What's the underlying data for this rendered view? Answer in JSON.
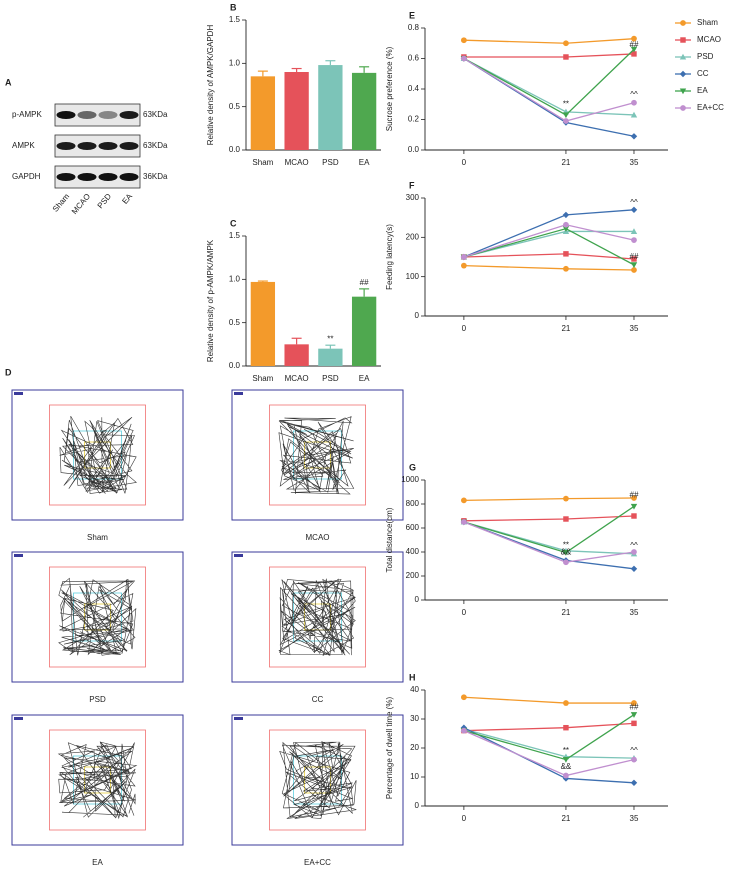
{
  "blot": {
    "panel": "A",
    "rows": [
      "p-AMPK",
      "AMPK",
      "GAPDH"
    ],
    "sizes": [
      "63KDa",
      "63KDa",
      "36KDa"
    ],
    "lanes": [
      "Sham",
      "MCAO",
      "PSD",
      "EA"
    ]
  },
  "open_field": {
    "panel": "D",
    "groups": [
      "Sham",
      "MCAO",
      "PSD",
      "CC",
      "EA",
      "EA+CC"
    ]
  },
  "chart_data": [
    {
      "type": "bar",
      "panel": "B",
      "y_label": "Relative density of AMPK/GAPDH",
      "categories": [
        "Sham",
        "MCAO",
        "PSD",
        "EA"
      ],
      "values": [
        0.85,
        0.9,
        0.98,
        0.89
      ],
      "errors": [
        0.06,
        0.04,
        0.05,
        0.07
      ],
      "colors": [
        "#f39a2b",
        "#e5525a",
        "#7cc4b8",
        "#4fa84f"
      ],
      "ylim": [
        0,
        1.5
      ],
      "yticks": [
        {
          "value": 0,
          "label": "0.0"
        },
        0.5,
        {
          "value": 1,
          "label": "1.0"
        },
        1.5
      ],
      "annotations": []
    },
    {
      "type": "bar",
      "panel": "C",
      "y_label": "Relative density of p-AMPK/AMPK",
      "categories": [
        "Sham",
        "MCAO",
        "PSD",
        "EA"
      ],
      "values": [
        0.97,
        0.25,
        0.2,
        0.8
      ],
      "errors": [
        0.01,
        0.07,
        0.04,
        0.09
      ],
      "colors": [
        "#f39a2b",
        "#e5525a",
        "#7cc4b8",
        "#4fa84f"
      ],
      "ylim": [
        0,
        1.5
      ],
      "yticks": [
        {
          "value": 0,
          "label": "0.0"
        },
        0.5,
        {
          "value": 1,
          "label": "1.0"
        },
        1.5
      ],
      "annotations": [
        {
          "text": "**",
          "category": "PSD"
        },
        {
          "text": "##",
          "category": "EA"
        }
      ]
    },
    {
      "type": "line",
      "panel": "E",
      "y_label": "Sucrose preference (%)",
      "legend": "right",
      "x": [
        0,
        21,
        35
      ],
      "xlim": [
        -8,
        42
      ],
      "xticks": [
        0,
        21,
        35
      ],
      "ylim": [
        0,
        0.8
      ],
      "yticks": [
        {
          "value": 0,
          "label": "0.0"
        },
        0.2,
        0.4,
        0.6,
        0.8
      ],
      "series": [
        {
          "name": "Sham",
          "color": "#f39a2b",
          "marker": "circle",
          "values": [
            0.72,
            0.7,
            0.73
          ]
        },
        {
          "name": "MCAO",
          "color": "#e5525a",
          "marker": "square",
          "values": [
            0.61,
            0.61,
            0.63
          ]
        },
        {
          "name": "PSD",
          "color": "#7cc4b8",
          "marker": "triangle-up",
          "values": [
            0.6,
            0.25,
            0.23
          ]
        },
        {
          "name": "CC",
          "color": "#3d6fb0",
          "marker": "diamond",
          "values": [
            0.6,
            0.18,
            0.09
          ]
        },
        {
          "name": "EA",
          "color": "#3fa34d",
          "marker": "triangle-down",
          "values": [
            0.6,
            0.23,
            0.66
          ]
        },
        {
          "name": "EA+CC",
          "color": "#c08fcf",
          "marker": "circle",
          "values": [
            0.6,
            0.19,
            0.31
          ]
        }
      ],
      "annotations": [
        {
          "text": "**",
          "x": 21,
          "y": 0.3
        },
        {
          "text": "##",
          "x": 35,
          "y": 0.69
        },
        {
          "text": "^^",
          "x": 35,
          "y": 0.36
        }
      ]
    },
    {
      "type": "line",
      "panel": "F",
      "y_label": "Feeding latency(s)",
      "x": [
        0,
        21,
        35
      ],
      "xlim": [
        -8,
        42
      ],
      "xticks": [
        0,
        21,
        35
      ],
      "ylim": [
        0,
        300
      ],
      "yticks": [
        0,
        100,
        200,
        300
      ],
      "series": [
        {
          "name": "Sham",
          "color": "#f39a2b",
          "marker": "circle",
          "values": [
            128,
            120,
            117
          ]
        },
        {
          "name": "MCAO",
          "color": "#e5525a",
          "marker": "square",
          "values": [
            150,
            158,
            145
          ]
        },
        {
          "name": "PSD",
          "color": "#7cc4b8",
          "marker": "triangle-up",
          "values": [
            150,
            215,
            215
          ]
        },
        {
          "name": "CC",
          "color": "#3d6fb0",
          "marker": "diamond",
          "values": [
            150,
            257,
            270
          ]
        },
        {
          "name": "EA",
          "color": "#3fa34d",
          "marker": "triangle-down",
          "values": [
            150,
            222,
            130
          ]
        },
        {
          "name": "EA+CC",
          "color": "#c08fcf",
          "marker": "circle",
          "values": [
            150,
            232,
            193
          ]
        }
      ],
      "annotations": [
        {
          "text": "^^",
          "x": 35,
          "y": 288
        },
        {
          "text": "##",
          "x": 35,
          "y": 150
        }
      ]
    },
    {
      "type": "line",
      "panel": "G",
      "y_label": "Total distance(cm)",
      "x": [
        0,
        21,
        35
      ],
      "xlim": [
        -8,
        42
      ],
      "xticks": [
        0,
        21,
        35
      ],
      "ylim": [
        0,
        1000
      ],
      "yticks": [
        0,
        200,
        400,
        600,
        800,
        1000
      ],
      "series": [
        {
          "name": "Sham",
          "color": "#f39a2b",
          "marker": "circle",
          "values": [
            830,
            845,
            850
          ]
        },
        {
          "name": "MCAO",
          "color": "#e5525a",
          "marker": "square",
          "values": [
            660,
            675,
            700
          ]
        },
        {
          "name": "PSD",
          "color": "#7cc4b8",
          "marker": "triangle-up",
          "values": [
            650,
            410,
            385
          ]
        },
        {
          "name": "CC",
          "color": "#3d6fb0",
          "marker": "diamond",
          "values": [
            650,
            330,
            260
          ]
        },
        {
          "name": "EA",
          "color": "#3fa34d",
          "marker": "triangle-down",
          "values": [
            650,
            395,
            780
          ]
        },
        {
          "name": "EA+CC",
          "color": "#c08fcf",
          "marker": "circle",
          "values": [
            650,
            315,
            400
          ]
        }
      ],
      "annotations": [
        {
          "text": "**",
          "x": 21,
          "y": 455
        },
        {
          "text": "&&",
          "x": 21,
          "y": 395
        },
        {
          "text": "##",
          "x": 35,
          "y": 870
        },
        {
          "text": "^^",
          "x": 35,
          "y": 450
        }
      ]
    },
    {
      "type": "line",
      "panel": "H",
      "y_label": "Percentage of dwell time (%)",
      "x": [
        0,
        21,
        35
      ],
      "xlim": [
        -8,
        42
      ],
      "xticks": [
        0,
        21,
        35
      ],
      "ylim": [
        0,
        40
      ],
      "yticks": [
        0,
        10,
        20,
        30,
        40
      ],
      "series": [
        {
          "name": "Sham",
          "color": "#f39a2b",
          "marker": "circle",
          "values": [
            37.5,
            35.5,
            35.5
          ]
        },
        {
          "name": "MCAO",
          "color": "#e5525a",
          "marker": "square",
          "values": [
            26,
            27,
            28.5
          ]
        },
        {
          "name": "PSD",
          "color": "#7cc4b8",
          "marker": "triangle-up",
          "values": [
            26.5,
            17,
            16.5
          ]
        },
        {
          "name": "CC",
          "color": "#3d6fb0",
          "marker": "diamond",
          "values": [
            27,
            9.5,
            8
          ]
        },
        {
          "name": "EA",
          "color": "#3fa34d",
          "marker": "triangle-down",
          "values": [
            26,
            16,
            31.5
          ]
        },
        {
          "name": "EA+CC",
          "color": "#c08fcf",
          "marker": "circle",
          "values": [
            26,
            10.5,
            16
          ]
        }
      ],
      "annotations": [
        {
          "text": "**",
          "x": 21,
          "y": 19
        },
        {
          "text": "&&",
          "x": 21,
          "y": 13.5
        },
        {
          "text": "##",
          "x": 35,
          "y": 34
        },
        {
          "text": "^^",
          "x": 35,
          "y": 19
        }
      ]
    }
  ]
}
